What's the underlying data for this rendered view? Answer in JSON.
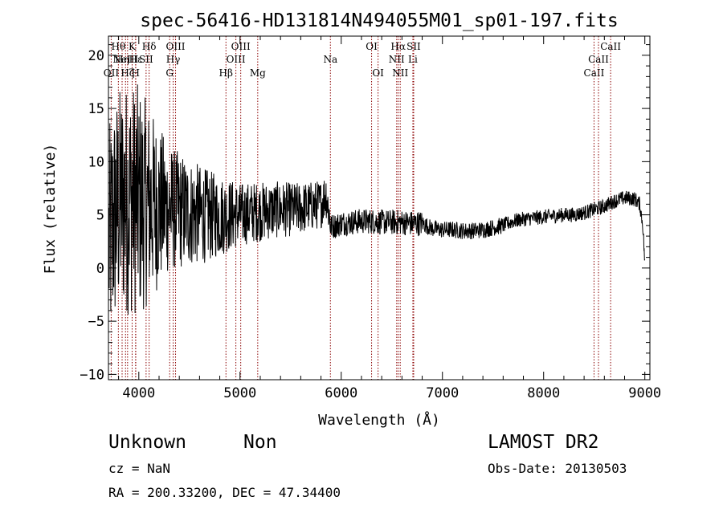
{
  "chart_data": {
    "type": "line",
    "title": "spec-56416-HD131814N494055M01_sp01-197.fits",
    "xlabel": "Wavelength (Å)",
    "ylabel": "Flux (relative)",
    "xlim": [
      3700,
      9050
    ],
    "ylim": [
      -10.5,
      21.8
    ],
    "x_ticks": [
      4000,
      5000,
      6000,
      7000,
      8000,
      9000
    ],
    "y_ticks": [
      -10,
      -5,
      0,
      5,
      10,
      15,
      20
    ],
    "grid": false,
    "legend": "none",
    "line_color": "#000000",
    "marker_color": "#8b0000",
    "series": [
      {
        "x": [
          3700,
          3750,
          3800,
          3850,
          3900,
          3950,
          4000,
          4100,
          4200,
          4300,
          4400,
          4500,
          4600,
          4700,
          4800,
          4900,
          5000,
          5100,
          5200,
          5300,
          5400,
          5500,
          5600,
          5700,
          5800,
          5850,
          5900,
          5950,
          6000,
          6100,
          6200,
          6300,
          6400,
          6500,
          6600,
          6700,
          6800,
          6900,
          7000,
          7100,
          7200,
          7300,
          7400,
          7500,
          7600,
          7700,
          7800,
          7900,
          8000,
          8100,
          8200,
          8300,
          8400,
          8500,
          8600,
          8700,
          8800,
          8900,
          8950,
          8980,
          9000
        ],
        "y": [
          2.0,
          4.5,
          6.0,
          6.5,
          6.5,
          6.5,
          6.3,
          6.0,
          5.8,
          5.6,
          5.4,
          5.2,
          5.0,
          4.9,
          4.9,
          5.0,
          5.0,
          5.2,
          5.3,
          5.4,
          5.5,
          5.5,
          5.6,
          5.8,
          6.0,
          7.0,
          3.9,
          4.0,
          4.2,
          4.3,
          4.4,
          4.4,
          4.3,
          4.3,
          4.3,
          4.2,
          4.2,
          3.7,
          3.6,
          3.6,
          3.5,
          3.5,
          3.6,
          3.8,
          4.0,
          4.4,
          4.6,
          4.7,
          4.8,
          4.9,
          5.0,
          5.0,
          5.2,
          5.5,
          5.8,
          6.3,
          6.6,
          6.5,
          6.0,
          4.0,
          0.5
        ]
      }
    ],
    "lines": [
      {
        "label": "OII",
        "x": 3727,
        "row": 2
      },
      {
        "label": "Hθ",
        "x": 3798,
        "row": 0
      },
      {
        "label": "Hη",
        "x": 3835,
        "row": 1
      },
      {
        "label": "Hζ",
        "x": 3889,
        "row": 2
      },
      {
        "label": "NeIII",
        "x": 3869,
        "row": 1
      },
      {
        "label": "K",
        "x": 3934,
        "row": 0
      },
      {
        "label": "H",
        "x": 3968,
        "row": 2
      },
      {
        "label": "Hε",
        "x": 3970,
        "row": 1
      },
      {
        "label": "SII",
        "x": 4072,
        "row": 1
      },
      {
        "label": "Hδ",
        "x": 4102,
        "row": 0
      },
      {
        "label": "G",
        "x": 4305,
        "row": 2
      },
      {
        "label": "Hγ",
        "x": 4340,
        "row": 1
      },
      {
        "label": "OIII",
        "x": 4363,
        "row": 0
      },
      {
        "label": "Hβ",
        "x": 4861,
        "row": 2
      },
      {
        "label": "OIII",
        "x": 4959,
        "row": 1
      },
      {
        "label": "OIII",
        "x": 5007,
        "row": 0
      },
      {
        "label": "Mg",
        "x": 5175,
        "row": 2
      },
      {
        "label": "Na",
        "x": 5893,
        "row": 1
      },
      {
        "label": "OI",
        "x": 6300,
        "row": 0
      },
      {
        "label": "OI",
        "x": 6364,
        "row": 2
      },
      {
        "label": "NII",
        "x": 6548,
        "row": 1
      },
      {
        "label": "Hα",
        "x": 6563,
        "row": 0
      },
      {
        "label": "NII",
        "x": 6583,
        "row": 2
      },
      {
        "label": "Li",
        "x": 6708,
        "row": 1
      },
      {
        "label": "SII",
        "x": 6716,
        "row": 0
      },
      {
        "label": "CaII",
        "x": 8498,
        "row": 2
      },
      {
        "label": "CaII",
        "x": 8542,
        "row": 1
      },
      {
        "label": "CaII",
        "x": 8662,
        "row": 0
      }
    ]
  },
  "info": {
    "object_class": "Unknown",
    "subclass": "Non",
    "survey": "LAMOST DR2",
    "cz": "cz = NaN",
    "obs_date": "Obs-Date: 20130503",
    "coords": "RA = 200.33200, DEC =  47.34400"
  }
}
